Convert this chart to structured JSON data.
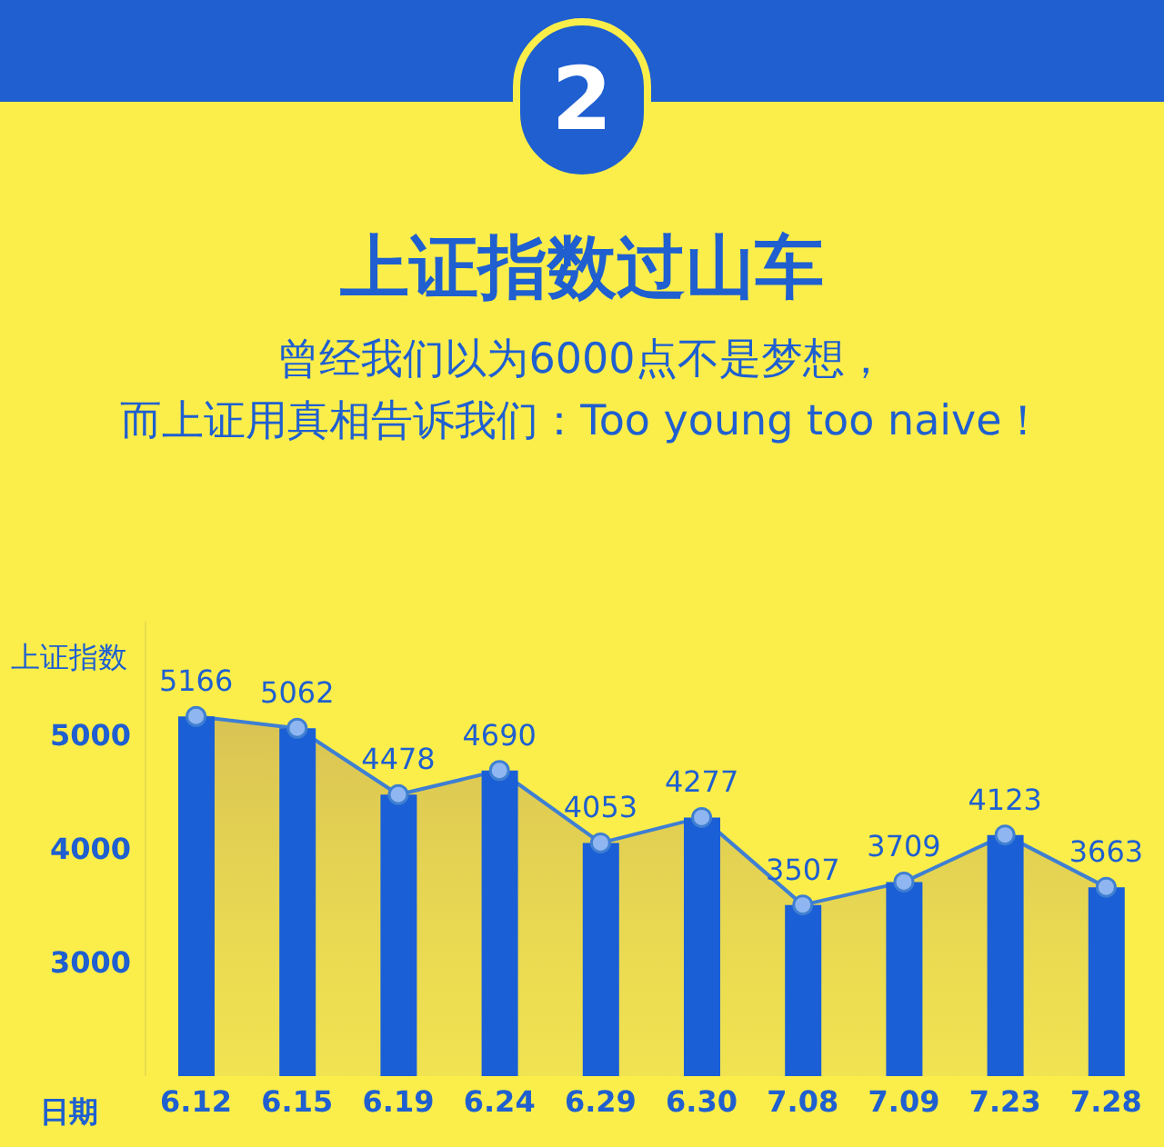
{
  "chart_data": {
    "type": "bar",
    "title": "上证指数过山车",
    "subtitle": "曾经我们以为6000点不是梦想，而上证用真相告诉我们：Too young too naive！",
    "annotations": [
      "2"
    ],
    "xlabel": "日期",
    "ylabel": "上证指数",
    "categories": [
      "6.12",
      "6.15",
      "6.19",
      "6.24",
      "6.29",
      "6.30",
      "7.08",
      "7.09",
      "7.23",
      "7.28"
    ],
    "series": [
      {
        "color": "#1b5fd6",
        "values": [
          5166,
          5062,
          4478,
          4690,
          4053,
          4277,
          3507,
          3709,
          4123,
          3663
        ]
      },
      {
        "type": "area",
        "color": "#3f7fd2",
        "values": [
          5166,
          5062,
          4478,
          4690,
          4053,
          4277,
          3507,
          3709,
          4123,
          3663
        ],
        "value_labels": [
          "5166",
          "5062",
          "4478",
          "4690",
          "4053",
          "4277",
          "3507",
          "3709",
          "4123",
          "3663"
        ]
      }
    ],
    "ylim": [
      2000,
      6000
    ],
    "yticks": [
      3000,
      4000,
      5000
    ],
    "grid": false,
    "legend": false,
    "marker": "circle"
  }
}
